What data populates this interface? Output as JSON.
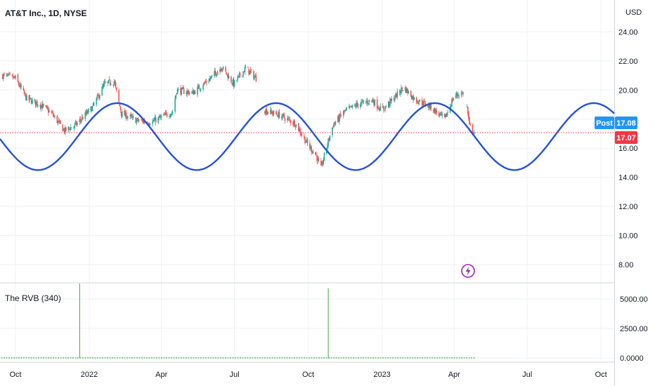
{
  "chart_data": [
    {
      "type": "line",
      "title": "AT&T Inc., 1D, NYSE",
      "y_unit": "USD",
      "yticks": [
        "24.00",
        "22.00",
        "20.00",
        "18.00",
        "16.00",
        "14.00",
        "12.00",
        "10.00",
        "8.00"
      ],
      "ylim": [
        6.8,
        25.8
      ],
      "xlabels": [
        "Oct",
        "2022",
        "Apr",
        "Jul",
        "Oct",
        "2023",
        "Apr",
        "Jul",
        "Oct"
      ],
      "grid": true,
      "price_path": [
        [
          "2021-09-15",
          21.0
        ],
        [
          "2021-10-01",
          20.8
        ],
        [
          "2021-10-15",
          19.4
        ],
        [
          "2021-11-01",
          19.0
        ],
        [
          "2021-11-15",
          18.4
        ],
        [
          "2021-12-01",
          17.2
        ],
        [
          "2021-12-15",
          17.6
        ],
        [
          "2022-01-05",
          18.8
        ],
        [
          "2022-01-20",
          20.4
        ],
        [
          "2022-02-01",
          20.6
        ],
        [
          "2022-02-10",
          18.4
        ],
        [
          "2022-03-01",
          17.9
        ],
        [
          "2022-03-20",
          17.8
        ],
        [
          "2022-04-15",
          18.5
        ],
        [
          "2022-04-20",
          20.0
        ],
        [
          "2022-05-10",
          19.8
        ],
        [
          "2022-06-01",
          20.8
        ],
        [
          "2022-06-15",
          21.6
        ],
        [
          "2022-06-30",
          20.4
        ],
        [
          "2022-07-15",
          21.5
        ],
        [
          "2022-07-28",
          20.8
        ]
      ],
      "price_path_2": [
        [
          "2022-08-08",
          18.6
        ],
        [
          "2022-08-25",
          18.3
        ],
        [
          "2022-09-15",
          17.7
        ],
        [
          "2022-10-01",
          16.2
        ],
        [
          "2022-10-10",
          15.6
        ],
        [
          "2022-10-17",
          14.6
        ],
        [
          "2022-10-25",
          16.3
        ],
        [
          "2022-11-01",
          17.6
        ],
        [
          "2022-11-15",
          18.5
        ],
        [
          "2022-12-01",
          19.0
        ],
        [
          "2022-12-20",
          19.3
        ],
        [
          "2023-01-01",
          18.6
        ],
        [
          "2023-01-15",
          19.4
        ],
        [
          "2023-01-28",
          20.2
        ],
        [
          "2023-02-10",
          19.4
        ],
        [
          "2023-03-01",
          18.9
        ],
        [
          "2023-03-20",
          18.0
        ],
        [
          "2023-04-01",
          19.6
        ],
        [
          "2023-04-12",
          19.8
        ]
      ],
      "price_path_3": [
        [
          "2023-04-17",
          18.8
        ],
        [
          "2023-04-20",
          17.5
        ],
        [
          "2023-04-26",
          17.1
        ]
      ],
      "sine_wave": {
        "min": 14.5,
        "max": 19.1,
        "period_days": 198,
        "peak_date": "2022-02-05",
        "color": "#2452d8"
      },
      "last_price_line": 17.07,
      "badges": {
        "post_label": "Post",
        "post_value": "17.08",
        "last_value": "17.07"
      }
    },
    {
      "type": "bar",
      "title": "The RVB (340)",
      "yticks": [
        "5000.00",
        "2500.00",
        "0.0000"
      ],
      "ylim": [
        0,
        6300
      ],
      "spikes": [
        [
          "2021-12-20",
          6300
        ],
        [
          "2022-10-26",
          5900
        ]
      ],
      "baseline": {
        "start": "2021-09-10",
        "end": "2023-04-27",
        "value": 0
      }
    }
  ],
  "colors": {
    "up": "#26a69a",
    "down": "#ef5350",
    "spike": "#43a047",
    "post_badge": "#2196f3",
    "last_badge": "#f23645",
    "lightning": "#9c27b0"
  },
  "icons": {
    "alert": "lightning-icon"
  }
}
